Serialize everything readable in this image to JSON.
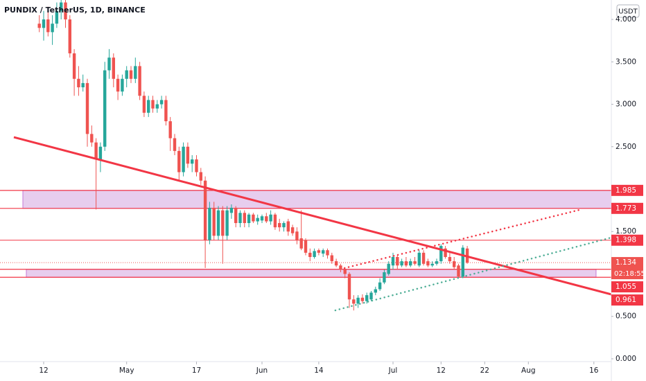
{
  "chart_data": {
    "type": "candlestick",
    "title": "PUNDIX / TetherUS, 1D, BINANCE",
    "currency": "USDT",
    "up_color": "#26a69a",
    "down_color": "#ef5350",
    "open": [
      3.95,
      3.9,
      4.0,
      3.85,
      3.95,
      4.1,
      4.2,
      4.0,
      3.6,
      3.3,
      3.2,
      3.25,
      2.65,
      2.55,
      2.35,
      2.5,
      3.4,
      3.55,
      3.3,
      3.15,
      3.3,
      3.4,
      3.3,
      3.45,
      3.1,
      2.9,
      3.05,
      2.95,
      3.0,
      3.05,
      2.8,
      2.6,
      2.45,
      2.2,
      2.5,
      2.3,
      2.35,
      2.2,
      2.1,
      1.4,
      1.78,
      1.45,
      1.75,
      1.45,
      1.72,
      1.78,
      1.6,
      1.72,
      1.6,
      1.7,
      1.62,
      1.63,
      1.68,
      1.62,
      1.7,
      1.6,
      1.55,
      1.62,
      1.55,
      1.5,
      1.42,
      1.4,
      1.25,
      1.2,
      1.28,
      1.24,
      1.28,
      1.22,
      1.15,
      1.1,
      1.05,
      1.0,
      0.7,
      0.65,
      0.72,
      0.68,
      0.7,
      0.78,
      0.82,
      0.9,
      1.0,
      1.1,
      1.2,
      1.1,
      1.15,
      1.1,
      1.15,
      1.1,
      1.25,
      1.15,
      1.1,
      1.12,
      1.15,
      1.3,
      1.2,
      1.15,
      1.1,
      0.97,
      1.3
    ],
    "high": [
      4.05,
      4.1,
      4.15,
      4.05,
      4.2,
      4.3,
      4.3,
      4.05,
      3.65,
      3.45,
      3.35,
      3.3,
      2.75,
      2.6,
      2.55,
      3.5,
      3.65,
      3.6,
      3.35,
      3.35,
      3.45,
      3.45,
      3.55,
      3.5,
      3.15,
      3.1,
      3.1,
      3.05,
      3.1,
      3.1,
      2.85,
      2.65,
      2.5,
      2.55,
      2.55,
      2.4,
      2.4,
      2.25,
      2.15,
      1.85,
      1.85,
      1.8,
      1.8,
      1.8,
      1.82,
      1.8,
      1.75,
      1.75,
      1.72,
      1.72,
      1.7,
      1.7,
      1.72,
      1.75,
      1.72,
      1.65,
      1.62,
      1.65,
      1.58,
      1.55,
      1.75,
      1.42,
      1.3,
      1.3,
      1.3,
      1.3,
      1.3,
      1.25,
      1.18,
      1.12,
      1.08,
      1.02,
      0.75,
      0.75,
      0.76,
      0.78,
      0.8,
      0.85,
      0.95,
      1.05,
      1.15,
      1.25,
      1.22,
      1.18,
      1.2,
      1.18,
      1.2,
      1.28,
      1.28,
      1.18,
      1.15,
      1.18,
      1.35,
      1.33,
      1.25,
      1.2,
      1.12,
      1.34,
      1.33
    ],
    "low": [
      3.85,
      3.75,
      3.8,
      3.7,
      3.9,
      4.0,
      3.9,
      3.55,
      3.1,
      3.1,
      3.15,
      2.5,
      2.5,
      1.76,
      2.2,
      2.45,
      3.3,
      3.2,
      3.05,
      3.1,
      3.2,
      3.25,
      3.25,
      3.05,
      2.85,
      2.85,
      2.9,
      2.9,
      2.95,
      2.75,
      2.45,
      2.4,
      2.1,
      2.15,
      2.25,
      2.2,
      2.15,
      2.05,
      1.07,
      1.35,
      1.4,
      1.4,
      1.12,
      1.4,
      1.65,
      1.55,
      1.55,
      1.55,
      1.55,
      1.6,
      1.58,
      1.6,
      1.6,
      1.58,
      1.52,
      1.5,
      1.5,
      1.45,
      1.45,
      1.35,
      1.28,
      1.22,
      1.15,
      1.18,
      1.22,
      1.2,
      1.18,
      1.12,
      1.08,
      1.02,
      0.95,
      0.6,
      0.57,
      0.6,
      0.65,
      0.65,
      0.68,
      0.75,
      0.8,
      0.88,
      0.98,
      1.05,
      1.05,
      1.08,
      1.08,
      1.08,
      1.1,
      1.08,
      1.1,
      1.08,
      1.08,
      1.1,
      1.12,
      1.18,
      1.12,
      1.05,
      0.96,
      0.95,
      1.12
    ],
    "close": [
      3.9,
      4.0,
      3.85,
      3.95,
      4.1,
      4.2,
      4.0,
      3.6,
      3.3,
      3.2,
      3.25,
      2.65,
      2.55,
      2.35,
      2.5,
      3.4,
      3.55,
      3.3,
      3.15,
      3.3,
      3.4,
      3.3,
      3.45,
      3.1,
      2.9,
      3.05,
      2.95,
      3.0,
      3.05,
      2.8,
      2.6,
      2.45,
      2.2,
      2.5,
      2.3,
      2.35,
      2.2,
      2.1,
      1.4,
      1.78,
      1.45,
      1.75,
      1.45,
      1.75,
      1.78,
      1.6,
      1.72,
      1.6,
      1.7,
      1.62,
      1.66,
      1.68,
      1.62,
      1.7,
      1.55,
      1.55,
      1.6,
      1.5,
      1.48,
      1.4,
      1.3,
      1.25,
      1.2,
      1.27,
      1.25,
      1.28,
      1.22,
      1.15,
      1.1,
      1.05,
      1.0,
      0.7,
      0.65,
      0.72,
      0.68,
      0.75,
      0.78,
      0.82,
      0.9,
      1.02,
      1.12,
      1.2,
      1.1,
      1.15,
      1.1,
      1.15,
      1.12,
      1.25,
      1.12,
      1.1,
      1.12,
      1.15,
      1.33,
      1.2,
      1.15,
      1.08,
      0.97,
      1.31,
      1.134
    ],
    "xlim": [
      -9,
      131
    ],
    "ylim": [
      -0.033,
      4.229
    ],
    "xticks": [
      {
        "value": 1,
        "label": "12"
      },
      {
        "value": 20,
        "label": "May"
      },
      {
        "value": 36,
        "label": "17"
      },
      {
        "value": 51,
        "label": "Jun"
      },
      {
        "value": 64,
        "label": "14"
      },
      {
        "value": 81,
        "label": "Jul"
      },
      {
        "value": 92,
        "label": "12"
      },
      {
        "value": 102,
        "label": "22"
      },
      {
        "value": 112,
        "label": "Aug"
      },
      {
        "value": 127,
        "label": "16"
      }
    ],
    "yticks": [
      {
        "value": 0,
        "label": "0.000"
      },
      {
        "value": 0.5,
        "label": "0.500"
      },
      {
        "value": 1.5,
        "label": "1.500"
      },
      {
        "value": 2.5,
        "label": "2.500"
      },
      {
        "value": 3,
        "label": "3.000"
      },
      {
        "value": 3.5,
        "label": "3.500"
      },
      {
        "value": 4,
        "label": "4.000"
      }
    ],
    "zones": [
      {
        "top": 1.985,
        "bottom": 1.773,
        "from": -3.76,
        "to": 131
      },
      {
        "top": 1.055,
        "bottom": 0.961,
        "from": -2.97,
        "to": 127.5
      }
    ],
    "levels": [
      1.398
    ],
    "level_color": "#f23645",
    "zone_fill": "#e7cdee",
    "last_price": 1.134,
    "countdown": "02:18:55",
    "trendlines": [
      {
        "points": [
          [
            -5.83,
            2.612
          ],
          [
            131,
            0.759
          ]
        ],
        "color": "#f23645",
        "style": "solid"
      },
      {
        "points": [
          [
            69.9,
            1.069
          ],
          [
            124.3,
            1.763
          ]
        ],
        "color": "#f23645",
        "style": "dotted"
      },
      {
        "points": [
          [
            67.8,
            0.571
          ],
          [
            131,
            1.429
          ]
        ],
        "color": "#4fae96",
        "style": "dotted"
      }
    ]
  }
}
